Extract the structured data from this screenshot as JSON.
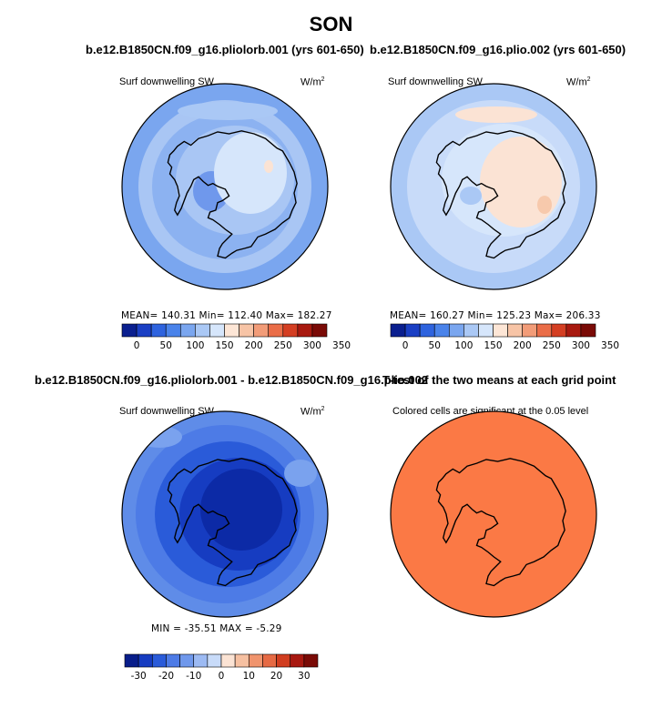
{
  "figure": {
    "title": "SON"
  },
  "colors": {
    "palette_12": [
      "#0a1f8f",
      "#1a3fc4",
      "#2e63de",
      "#4a83ea",
      "#7aa6ef",
      "#aac8f5",
      "#d6e6fb",
      "#fde6d6",
      "#f7c4a6",
      "#f29c78",
      "#ea6d48",
      "#d43e22",
      "#a8190f",
      "#7a0a06"
    ],
    "diff_palette": [
      "#081d8a",
      "#163cc1",
      "#2a5bd9",
      "#4d7be6",
      "#6f98ec",
      "#9cbaf3",
      "#c8dbf9",
      "#fbe3d4",
      "#f6c0a1",
      "#f0946d",
      "#e66a44",
      "#d13d1f",
      "#a81810",
      "#7a0a06"
    ],
    "significant": "#fb7945"
  },
  "chart_data": [
    {
      "type": "map",
      "projection": "polar stereographic (south)",
      "title": "b.e12.B1850CN.f09_g16.pliolorb.001 (yrs 601-650)",
      "variable": "Surf downwelling SW",
      "units": "W/m",
      "units_exp": "2",
      "stats": {
        "mean": "140.31",
        "min": "112.40",
        "max": "182.27"
      },
      "stats_text": "MEAN= 140.31   Min= 112.40   Max= 182.27",
      "colorbar": {
        "levels": [
          "0",
          "50",
          "100",
          "150",
          "200",
          "250",
          "300",
          "350"
        ]
      }
    },
    {
      "type": "map",
      "projection": "polar stereographic (south)",
      "title": "b.e12.B1850CN.f09_g16.plio.002 (yrs 601-650)",
      "variable": "Surf downwelling SW",
      "units": "W/m",
      "units_exp": "2",
      "stats": {
        "mean": "160.27",
        "min": "125.23",
        "max": "206.33"
      },
      "stats_text": "MEAN= 160.27   Min= 125.23   Max= 206.33",
      "colorbar": {
        "levels": [
          "0",
          "50",
          "100",
          "150",
          "200",
          "250",
          "300",
          "350"
        ]
      }
    },
    {
      "type": "map",
      "projection": "polar stereographic (south)",
      "title": "b.e12.B1850CN.f09_g16.pliolorb.001 - b.e12.B1850CN.f09_g16.plio.002",
      "variable": "Surf downwelling SW",
      "units": "W/m",
      "units_exp": "2",
      "stats": {
        "min": "-35.51",
        "max": "-5.29"
      },
      "stats_text": "MIN = -35.51   MAX =  -5.29",
      "colorbar": {
        "levels": [
          "-30",
          "-20",
          "-10",
          "0",
          "10",
          "20",
          "30"
        ]
      }
    },
    {
      "type": "map",
      "projection": "polar stereographic (south)",
      "title": "T-test of the two means at each grid point",
      "subtitle": "Colored cells are significant at the 0.05 level"
    }
  ]
}
